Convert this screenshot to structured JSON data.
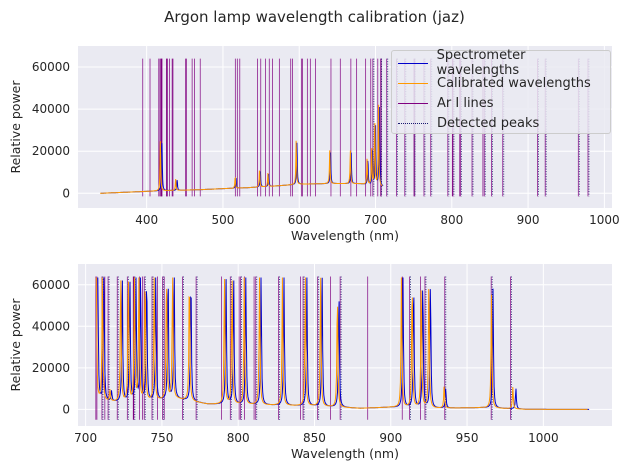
{
  "title": "Argon lamp wavelength calibration (jaz)",
  "colors": {
    "background": "#EAEAF2",
    "spectrometer": "#0000CC",
    "calibrated": "#FF9900",
    "ar_lines": "#800080",
    "detected": "#191970"
  },
  "legend": [
    {
      "label": "Spectrometer wavelengths",
      "style": "solid",
      "color": "#0000CC"
    },
    {
      "label": "Calibrated wavelengths",
      "style": "solid",
      "color": "#FF9900"
    },
    {
      "label": "Ar I lines",
      "style": "solid",
      "color": "#800080"
    },
    {
      "label": "Detected peaks",
      "style": "dotted",
      "color": "#191970"
    }
  ],
  "chart_data": [
    {
      "type": "line",
      "xlabel": "Wavelength (nm)",
      "ylabel": "Relative power",
      "xlim": [
        310,
        1010
      ],
      "ylim": [
        -7000,
        70000
      ],
      "xticks": [
        400,
        500,
        600,
        700,
        800,
        900,
        1000
      ],
      "yticks": [
        0,
        20000,
        40000,
        60000
      ],
      "grid": true,
      "legend_position": "upper right",
      "ar_lines": [
        394.9,
        404.4,
        415.9,
        416.4,
        418.2,
        419.1,
        419.8,
        420.1,
        425.9,
        426.6,
        427.2,
        430.0,
        433.4,
        434.5,
        451.1,
        452.2,
        459.6,
        462.8,
        470.2,
        516.2,
        518.8,
        522.1,
        545.2,
        549.6,
        555.9,
        560.7,
        565.1,
        573.9,
        588.9,
        591.2,
        603.2,
        604.3,
        610.6,
        614.5,
        621.2,
        641.6,
        653.8,
        667.7,
        675.3,
        687.1,
        693.8,
        696.5,
        703.0,
        706.7,
        707.4,
        714.7,
        727.3,
        738.4,
        750.4,
        751.5,
        763.5,
        772.4,
        794.8,
        800.6,
        801.5,
        810.4,
        811.5,
        826.5,
        840.8,
        842.5,
        852.1,
        866.8,
        912.3,
        922.4,
        965.8,
        978.5
      ],
      "detected_peaks": [
        696.5,
        706.7,
        714.7,
        727.3,
        738.4,
        750.4,
        763.5,
        772.4,
        794.8,
        801.5,
        811.5,
        826.5,
        842.5,
        852.1,
        866.8,
        912.3,
        922.4,
        965.8,
        978.5
      ],
      "baseline": [
        [
          340,
          0
        ],
        [
          400,
          900
        ],
        [
          430,
          1300
        ],
        [
          470,
          1700
        ],
        [
          500,
          2200
        ],
        [
          530,
          2600
        ],
        [
          560,
          3200
        ],
        [
          600,
          4300
        ],
        [
          640,
          4600
        ],
        [
          680,
          4500
        ],
        [
          710,
          3000
        ]
      ],
      "spectrometer_peaks": [
        [
          420,
          25000
        ],
        [
          440,
          5000
        ],
        [
          517,
          5000
        ],
        [
          549,
          8000
        ],
        [
          560,
          6000
        ],
        [
          597,
          20000
        ],
        [
          641,
          15000
        ],
        [
          668,
          15000
        ],
        [
          690,
          12000
        ],
        [
          696,
          16000
        ],
        [
          700,
          30000
        ],
        [
          705,
          38000
        ]
      ],
      "calibrated_peaks": [
        [
          418,
          24000
        ],
        [
          438,
          5500
        ],
        [
          516,
          5500
        ],
        [
          548,
          8500
        ],
        [
          559,
          6500
        ],
        [
          596,
          21000
        ],
        [
          640,
          16000
        ],
        [
          667,
          16000
        ],
        [
          689,
          13000
        ],
        [
          695,
          17000
        ],
        [
          699,
          31000
        ],
        [
          704,
          39000
        ]
      ]
    },
    {
      "type": "line",
      "xlabel": "Wavelength (nm)",
      "ylabel": "Relative power",
      "xlim": [
        695,
        1045
      ],
      "ylim": [
        -8000,
        70000
      ],
      "xticks": [
        700,
        750,
        800,
        850,
        900,
        950,
        1000
      ],
      "yticks": [
        0,
        20000,
        40000,
        60000
      ],
      "grid": true,
      "ar_lines": [
        706.7,
        707.4,
        710.7,
        712.6,
        714.7,
        720.7,
        727.3,
        731.2,
        731.6,
        735.3,
        737.2,
        738.4,
        743.5,
        747.1,
        750.4,
        751.5,
        763.5,
        772.4,
        789.1,
        794.8,
        800.6,
        801.5,
        804.1,
        810.4,
        811.5,
        826.5,
        840.8,
        842.5,
        852.1,
        860.6,
        866.8,
        884.9,
        907.5,
        912.3,
        919.5,
        922.4,
        935.4,
        965.8,
        978.5
      ],
      "detected_peaks": [
        710.7,
        714.7,
        720.7,
        727.3,
        731.6,
        738.4,
        743.5,
        750.4,
        763.5,
        772.4,
        794.8,
        801.5,
        811.5,
        826.5,
        842.5,
        852.1,
        866.8,
        912.3,
        922.4,
        935.4,
        965.8,
        978.5
      ],
      "background_points": [
        [
          708,
          4000
        ],
        [
          730,
          3000
        ],
        [
          760,
          5000
        ],
        [
          780,
          2500
        ],
        [
          820,
          2000
        ],
        [
          850,
          1500
        ],
        [
          880,
          500
        ],
        [
          900,
          1000
        ],
        [
          930,
          500
        ],
        [
          960,
          800
        ],
        [
          990,
          0
        ],
        [
          1030,
          0
        ]
      ],
      "spectrometer_peaks": [
        [
          708,
          63000
        ],
        [
          712,
          63000
        ],
        [
          717,
          5000
        ],
        [
          724,
          63000
        ],
        [
          729,
          63000
        ],
        [
          733,
          63000
        ],
        [
          736,
          63000
        ],
        [
          740,
          63000
        ],
        [
          746,
          63000
        ],
        [
          754,
          63000
        ],
        [
          758,
          63000
        ],
        [
          769,
          63000
        ],
        [
          792,
          63000
        ],
        [
          797,
          63000
        ],
        [
          805,
          63000
        ],
        [
          815,
          63000
        ],
        [
          830,
          63000
        ],
        [
          845,
          63000
        ],
        [
          855,
          63000
        ],
        [
          866,
          59000
        ],
        [
          908,
          63000
        ],
        [
          915,
          63000
        ],
        [
          921,
          63000
        ],
        [
          926,
          63000
        ],
        [
          936,
          10000
        ],
        [
          967,
          58000
        ],
        [
          982,
          10000
        ]
      ],
      "calibrated_peaks": [
        [
          707,
          63000
        ],
        [
          711,
          63000
        ],
        [
          716,
          5500
        ],
        [
          723,
          63000
        ],
        [
          728,
          63000
        ],
        [
          732,
          63000
        ],
        [
          735,
          63000
        ],
        [
          739,
          63000
        ],
        [
          745,
          63000
        ],
        [
          753,
          63000
        ],
        [
          757,
          63000
        ],
        [
          768,
          63000
        ],
        [
          791,
          63000
        ],
        [
          796,
          63000
        ],
        [
          804,
          63000
        ],
        [
          814,
          63000
        ],
        [
          829,
          63000
        ],
        [
          844,
          63000
        ],
        [
          854,
          63000
        ],
        [
          865,
          56000
        ],
        [
          907,
          63000
        ],
        [
          914,
          63000
        ],
        [
          920,
          63000
        ],
        [
          925,
          63000
        ],
        [
          935,
          11000
        ],
        [
          966,
          55000
        ],
        [
          980,
          10500
        ]
      ]
    }
  ]
}
